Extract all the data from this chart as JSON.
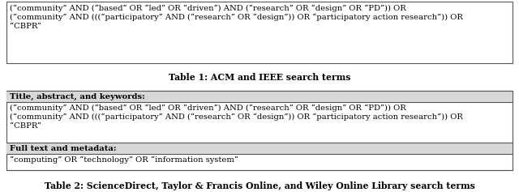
{
  "table1_caption": "Table 1: ACM and IEEE search terms",
  "table1_content": "(“community” AND (“based” OR “led” OR “driven”) AND (“research” OR “design” OR “PD”)) OR\n(“community” AND (((“participatory” AND (“research” OR “design”)) OR “participatory action research”)) OR\n“CBPR”",
  "table2_caption": "Table 2: ScienceDirect, Taylor & Francis Online, and Wiley Online Library search terms",
  "table2_row1_header": "Title, abstract, and keywords:",
  "table2_row1_content": "(“community” AND (“based” OR “led” OR “driven”) AND (“research” OR “design” OR “PD”)) OR\n(“community” AND (((“participatory” AND (“research” OR “design”)) OR “participatory action research”)) OR\n“CBPR”",
  "table2_row2_header": "Full text and metadata:",
  "table2_row2_content": "“computing” OR “technology” OR “information system”",
  "font_size": 7.2,
  "caption_font_size": 7.8,
  "bg_color": "#ffffff",
  "header_bg_color": "#d8d8d8",
  "border_color": "#555555"
}
